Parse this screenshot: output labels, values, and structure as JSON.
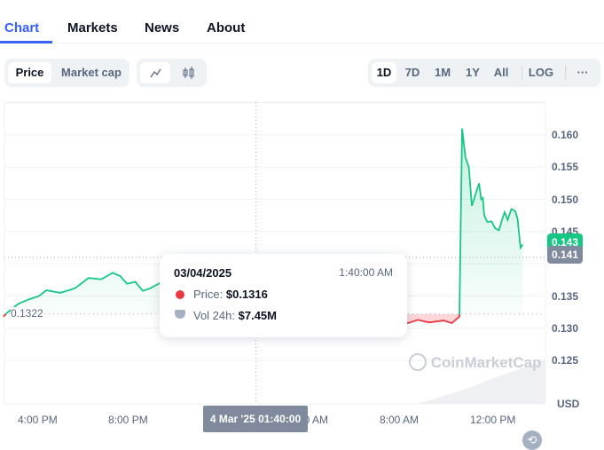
{
  "tabs": [
    {
      "label": "Chart",
      "active": true
    },
    {
      "label": "Markets"
    },
    {
      "label": "News"
    },
    {
      "label": "About"
    }
  ],
  "toolbar": {
    "metric": [
      {
        "label": "Price",
        "active": true
      },
      {
        "label": "Market cap"
      }
    ],
    "chart_style": [
      {
        "icon": "line-chart-icon",
        "active": true
      },
      {
        "icon": "candlestick-icon"
      }
    ],
    "ranges": [
      {
        "label": "1D",
        "active": true
      },
      {
        "label": "7D"
      },
      {
        "label": "1M"
      },
      {
        "label": "1Y"
      },
      {
        "label": "All"
      }
    ],
    "log_label": "LOG",
    "more_label": "···"
  },
  "colors": {
    "accent": "#3861fb",
    "up": "#16c784",
    "down": "#ea3943"
  },
  "chart_data": {
    "type": "line",
    "currency_label": "USD",
    "baseline": 0.1322,
    "baseline_label": "0.1322",
    "ylim": [
      0.121,
      0.166
    ],
    "y_ticks": [
      "0.160",
      "0.155",
      "0.150",
      "0.145",
      "0.135",
      "0.130",
      "0.125"
    ],
    "x_ticks": [
      {
        "label": "4:00 PM",
        "t": "2025-03-03T16:00"
      },
      {
        "label": "8:00 PM",
        "t": "2025-03-03T20:00"
      },
      {
        "label": "4:00 AM",
        "t": "2025-03-04T04:00"
      },
      {
        "label": "8:00 AM",
        "t": "2025-03-04T08:00"
      },
      {
        "label": "12:00 PM",
        "t": "2025-03-04T12:00"
      }
    ],
    "points": [
      [
        "2025-03-03T14:30",
        0.1318
      ],
      [
        "2025-03-03T14:40",
        0.1324
      ],
      [
        "2025-03-03T15:10",
        0.1338
      ],
      [
        "2025-03-03T15:39",
        0.1345
      ],
      [
        "2025-03-03T16:05",
        0.135
      ],
      [
        "2025-03-03T16:24",
        0.1359
      ],
      [
        "2025-03-03T17:01",
        0.1355
      ],
      [
        "2025-03-03T17:40",
        0.1362
      ],
      [
        "2025-03-03T18:16",
        0.1378
      ],
      [
        "2025-03-03T18:50",
        0.1376
      ],
      [
        "2025-03-03T19:20",
        0.1386
      ],
      [
        "2025-03-03T19:40",
        0.1381
      ],
      [
        "2025-03-03T19:58",
        0.1369
      ],
      [
        "2025-03-03T20:20",
        0.1372
      ],
      [
        "2025-03-03T20:40",
        0.1358
      ],
      [
        "2025-03-03T21:00",
        0.1362
      ],
      [
        "2025-03-03T21:25",
        0.137
      ],
      [
        "2025-03-03T22:30",
        0.1355
      ],
      [
        "2025-03-04T00:00",
        0.1338
      ],
      [
        "2025-03-04T01:00",
        0.1325
      ],
      [
        "2025-03-04T01:40",
        0.1316
      ],
      [
        "2025-03-04T03:00",
        0.1312
      ],
      [
        "2025-03-04T05:00",
        0.1309
      ],
      [
        "2025-03-04T07:00",
        0.1311
      ],
      [
        "2025-03-04T08:24",
        0.1308
      ],
      [
        "2025-03-04T08:50",
        0.1313
      ],
      [
        "2025-03-04T09:20",
        0.1309
      ],
      [
        "2025-03-04T09:58",
        0.1312
      ],
      [
        "2025-03-04T10:20",
        0.1308
      ],
      [
        "2025-03-04T10:40",
        0.1318
      ],
      [
        "2025-03-04T10:47",
        0.161
      ],
      [
        "2025-03-04T10:56",
        0.1565
      ],
      [
        "2025-03-04T11:05",
        0.155
      ],
      [
        "2025-03-04T11:13",
        0.149
      ],
      [
        "2025-03-04T11:32",
        0.1525
      ],
      [
        "2025-03-04T11:38",
        0.15
      ],
      [
        "2025-03-04T11:42",
        0.1502
      ],
      [
        "2025-03-04T11:46",
        0.1475
      ],
      [
        "2025-03-04T11:54",
        0.1465
      ],
      [
        "2025-03-04T12:05",
        0.1466
      ],
      [
        "2025-03-04T12:15",
        0.1455
      ],
      [
        "2025-03-04T12:25",
        0.1452
      ],
      [
        "2025-03-04T12:33",
        0.1468
      ],
      [
        "2025-03-04T12:40",
        0.148
      ],
      [
        "2025-03-04T12:48",
        0.1468
      ],
      [
        "2025-03-04T12:58",
        0.1485
      ],
      [
        "2025-03-04T13:08",
        0.1482
      ],
      [
        "2025-03-04T13:14",
        0.147
      ],
      [
        "2025-03-04T13:22",
        0.1425
      ],
      [
        "2025-03-04T13:28",
        0.143
      ]
    ],
    "current_price_label": "0.143",
    "hover_price_label": "0.141",
    "crosshair_t": "2025-03-04T01:40",
    "crosshair_label": "4 Mar '25 01:40:00",
    "watermark": "CoinMarketCap"
  },
  "tooltip": {
    "date": "03/04/2025",
    "time": "1:40:00 AM",
    "price_label": "Price:",
    "price_value": "$0.1316",
    "vol_label": "Vol 24h:",
    "vol_value": "$7.45M"
  }
}
